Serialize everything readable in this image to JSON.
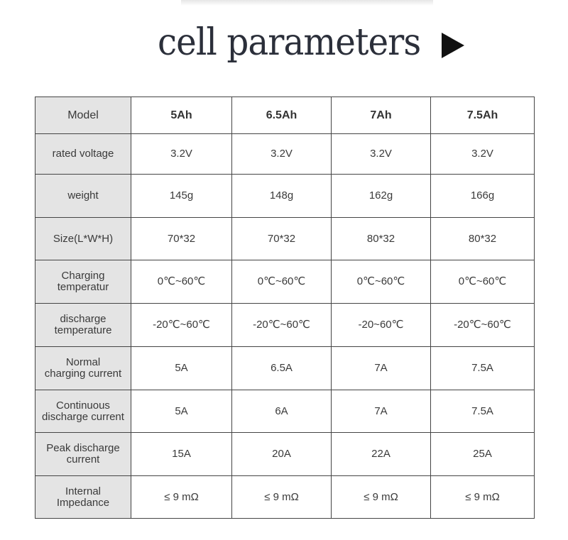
{
  "title": "cell parameters",
  "icons": {
    "play": "play-triangle-icon"
  },
  "table": {
    "header_label": "Model",
    "columns": [
      "5Ah",
      "6.5Ah",
      "7Ah",
      "7.5Ah"
    ],
    "rows": [
      {
        "label": "rated voltage",
        "values": [
          "3.2V",
          "3.2V",
          "3.2V",
          "3.2V"
        ]
      },
      {
        "label": "weight",
        "values": [
          "145g",
          "148g",
          "162g",
          "166g"
        ]
      },
      {
        "label": "Size(L*W*H)",
        "values": [
          "70*32",
          "70*32",
          "80*32",
          "80*32"
        ]
      },
      {
        "label_line1": "Charging",
        "label_line2": "temperatur",
        "values": [
          "0℃~60℃",
          "0℃~60℃",
          "0℃~60℃",
          "0℃~60℃"
        ]
      },
      {
        "label_line1": "discharge",
        "label_line2": "temperature",
        "values": [
          "-20℃~60℃",
          "-20℃~60℃",
          "-20~60℃",
          "-20℃~60℃"
        ]
      },
      {
        "label_line1": "Normal",
        "label_line2": "charging current",
        "values": [
          "5A",
          "6.5A",
          "7A",
          "7.5A"
        ]
      },
      {
        "label_line1": "Continuous",
        "label_line2": "discharge current",
        "values": [
          "5A",
          "6A",
          "7A",
          "7.5A"
        ]
      },
      {
        "label_line1": "Peak discharge",
        "label_line2": "current",
        "values": [
          "15A",
          "20A",
          "22A",
          "25A"
        ]
      },
      {
        "label_line1": "Internal",
        "label_line2": "Impedance",
        "values": [
          "≤ 9 mΩ",
          "≤ 9 mΩ",
          "≤ 9 mΩ",
          "≤ 9 mΩ"
        ]
      }
    ]
  }
}
